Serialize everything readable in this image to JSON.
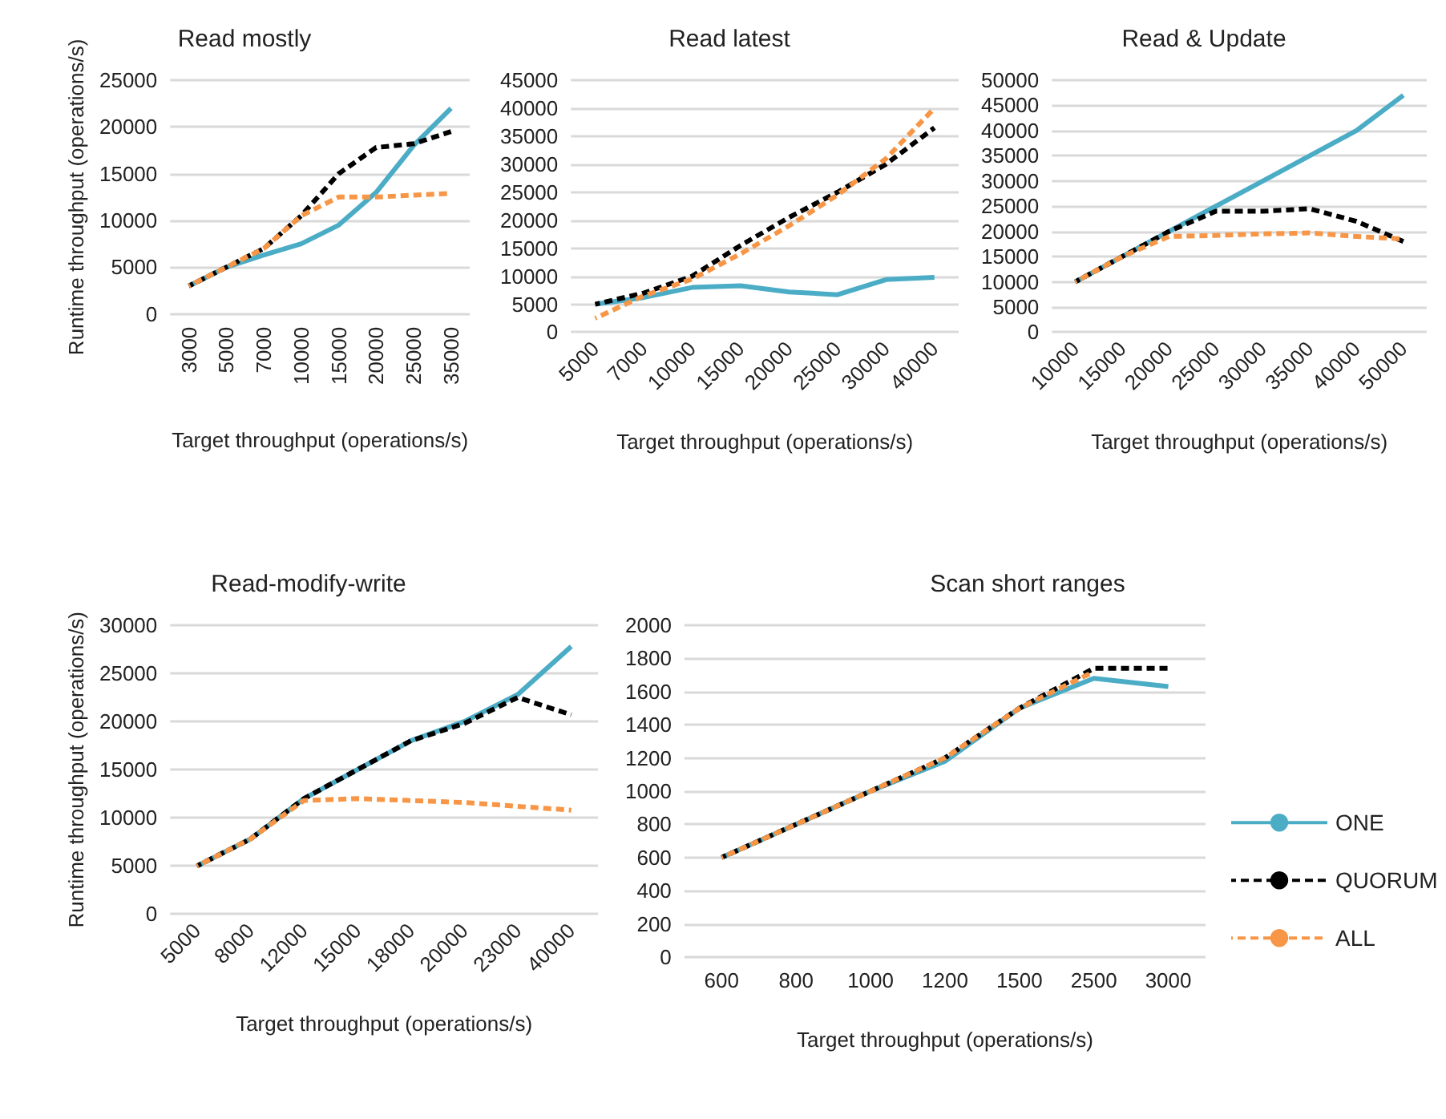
{
  "chart_data": [
    {
      "type": "line",
      "title": "Read mostly",
      "ylabel": "Runtime throughput (operations/s)",
      "xlabel": "Target throughput (operations/s)",
      "categories": [
        "3000",
        "5000",
        "7000",
        "10000",
        "15000",
        "20000",
        "25000",
        "35000"
      ],
      "series": [
        {
          "color": "#4bacc6",
          "line_style": "solid",
          "values": [
            3000,
            5000,
            6300,
            7500,
            9500,
            13000,
            18000,
            22000
          ]
        },
        {
          "color": "#000000",
          "line_style": "dashed",
          "values": [
            3000,
            5000,
            7000,
            10500,
            15000,
            17800,
            18200,
            19500
          ]
        },
        {
          "color": "#f79646",
          "line_style": "dashed",
          "values": [
            3000,
            5000,
            7000,
            10500,
            12500,
            12500,
            12700,
            12900
          ]
        }
      ],
      "ylim": [
        0,
        25000
      ],
      "yticks": [
        0,
        5000,
        10000,
        15000,
        20000,
        25000
      ],
      "grid": "y",
      "legend": false,
      "marker": "none"
    },
    {
      "type": "line",
      "title": "Read latest",
      "xlabel": "Target throughput (operations/s)",
      "categories": [
        "5000",
        "7000",
        "10000",
        "15000",
        "20000",
        "25000",
        "30000",
        "40000"
      ],
      "series": [
        {
          "color": "#4bacc6",
          "line_style": "solid",
          "values": [
            5000,
            6200,
            8000,
            8300,
            7200,
            6700,
            9400,
            9800
          ]
        },
        {
          "color": "#000000",
          "line_style": "dashed",
          "values": [
            5000,
            7000,
            10000,
            15500,
            20500,
            25000,
            30000,
            36500
          ]
        },
        {
          "color": "#f79646",
          "line_style": "dashed",
          "values": [
            2500,
            6500,
            9500,
            14000,
            19000,
            24500,
            31000,
            40000
          ]
        }
      ],
      "ylim": [
        0,
        45000
      ],
      "yticks": [
        0,
        5000,
        10000,
        15000,
        20000,
        25000,
        30000,
        35000,
        40000,
        45000
      ],
      "grid": "y",
      "legend": false,
      "marker": "none"
    },
    {
      "type": "line",
      "title": "Read & Update",
      "xlabel": "Target throughput (operations/s)",
      "categories": [
        "10000",
        "15000",
        "20000",
        "25000",
        "30000",
        "35000",
        "40000",
        "50000"
      ],
      "series": [
        {
          "color": "#4bacc6",
          "line_style": "solid",
          "values": [
            10000,
            15000,
            20000,
            25000,
            30000,
            35000,
            40000,
            47000
          ]
        },
        {
          "color": "#000000",
          "line_style": "dashed",
          "values": [
            10000,
            15000,
            20000,
            24000,
            24000,
            24500,
            22000,
            18000
          ]
        },
        {
          "color": "#f79646",
          "line_style": "dashed",
          "values": [
            10000,
            15000,
            19000,
            19200,
            19500,
            19700,
            19000,
            18500
          ]
        }
      ],
      "ylim": [
        0,
        50000
      ],
      "yticks": [
        0,
        5000,
        10000,
        15000,
        20000,
        25000,
        30000,
        35000,
        40000,
        45000,
        50000
      ],
      "grid": "y",
      "legend": false,
      "marker": "none"
    },
    {
      "type": "line",
      "title": "Read-modify-write",
      "ylabel": "Runtime throughput (operations/s)",
      "xlabel": "Target throughput (operations/s)",
      "categories": [
        "5000",
        "8000",
        "12000",
        "15000",
        "18000",
        "20000",
        "23000",
        "40000"
      ],
      "series": [
        {
          "color": "#4bacc6",
          "line_style": "solid",
          "values": [
            5000,
            7800,
            12000,
            15000,
            18000,
            20000,
            22800,
            27800
          ]
        },
        {
          "color": "#000000",
          "line_style": "dashed",
          "values": [
            5000,
            7800,
            12000,
            15000,
            18000,
            19800,
            22500,
            20700
          ]
        },
        {
          "color": "#f79646",
          "line_style": "dashed",
          "values": [
            5000,
            7800,
            11800,
            12000,
            11800,
            11600,
            11200,
            10800
          ]
        }
      ],
      "ylim": [
        0,
        30000
      ],
      "yticks": [
        0,
        5000,
        10000,
        15000,
        20000,
        25000,
        30000
      ],
      "grid": "y",
      "legend": false,
      "marker": "none"
    },
    {
      "type": "line",
      "title": "Scan short ranges",
      "xlabel": "Target throughput (operations/s)",
      "categories": [
        "600",
        "800",
        "1000",
        "1200",
        "1500",
        "2500",
        "3000"
      ],
      "series": [
        {
          "name": "ONE",
          "color": "#4bacc6",
          "line_style": "solid",
          "values": [
            600,
            800,
            1000,
            1180,
            1500,
            1680,
            1630
          ]
        },
        {
          "name": "QUORUM",
          "color": "#000000",
          "line_style": "dashed",
          "values": [
            600,
            800,
            1000,
            1200,
            1500,
            1740,
            1740
          ]
        },
        {
          "name": "ALL",
          "color": "#f79646",
          "line_style": "dashed",
          "values": [
            600,
            800,
            1000,
            1200,
            1500,
            1720,
            null
          ]
        }
      ],
      "ylim": [
        0,
        2000
      ],
      "yticks": [
        0,
        200,
        400,
        600,
        800,
        1000,
        1200,
        1400,
        1600,
        1800,
        2000
      ],
      "grid": "y",
      "legend": "right",
      "marker": "none"
    }
  ]
}
